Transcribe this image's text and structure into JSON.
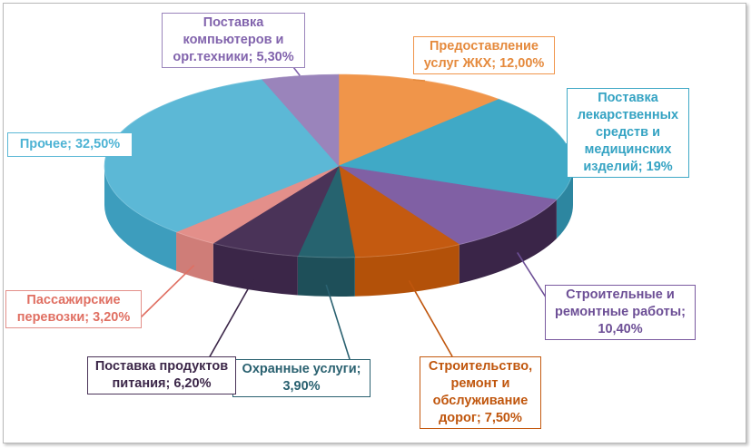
{
  "chart_data": {
    "type": "pie",
    "title": "",
    "slices": [
      {
        "label": "Предоставление услуг ЖКХ; 12,00%",
        "value": 12.0,
        "color": "#f0954a",
        "side": "#c9702c",
        "labelColor": "#e58a3d",
        "borderColor": "#f0954a"
      },
      {
        "label": "Поставка лекарственных средств и медицинских изделий; 19%",
        "value": 19.0,
        "color": "#40a9c6",
        "side": "#2d86a0",
        "labelColor": "#35a3c3",
        "borderColor": "#40a9c6"
      },
      {
        "label": "Строительные и ремонтные работы; 10,40%",
        "value": 10.4,
        "color": "#8060a4",
        "side": "#3a2548",
        "labelColor": "#6d4f96",
        "borderColor": "#7a5aa0"
      },
      {
        "label": "Строительство, ремонт и обслуживание дорог; 7,50%",
        "value": 7.5,
        "color": "#c45a10",
        "side": "#b35109",
        "labelColor": "#c0560d",
        "borderColor": "#c45a10"
      },
      {
        "label": "Охранные услуги; 3,90%",
        "value": 3.9,
        "color": "#26636f",
        "side": "#1e4f59",
        "labelColor": "#2a6170",
        "borderColor": "#2a6170"
      },
      {
        "label": "Поставка продуктов питания; 6,20%",
        "value": 6.2,
        "color": "#4a3358",
        "side": "#3b2648",
        "labelColor": "#3b2648",
        "borderColor": "#4a3358"
      },
      {
        "label": "Пассажирские перевозки; 3,20%",
        "value": 3.2,
        "color": "#e38f8a",
        "side": "#cf7d78",
        "labelColor": "#e06f62",
        "borderColor": "#e3908a"
      },
      {
        "label": "Прочее; 32,50%",
        "value": 32.5,
        "color": "#5cb8d6",
        "side": "#3d9dbd",
        "labelColor": "#4db3d4",
        "borderColor": "#5cb8d6"
      },
      {
        "label": "Поставка компьютеров и орг.техники; 5,30%",
        "value": 5.3,
        "color": "#9a84bb",
        "side": "#7d68a0",
        "labelColor": "#8264ad",
        "borderColor": "#9a84bb"
      }
    ],
    "legend": "none",
    "data_labels": "outside with leader lines"
  }
}
